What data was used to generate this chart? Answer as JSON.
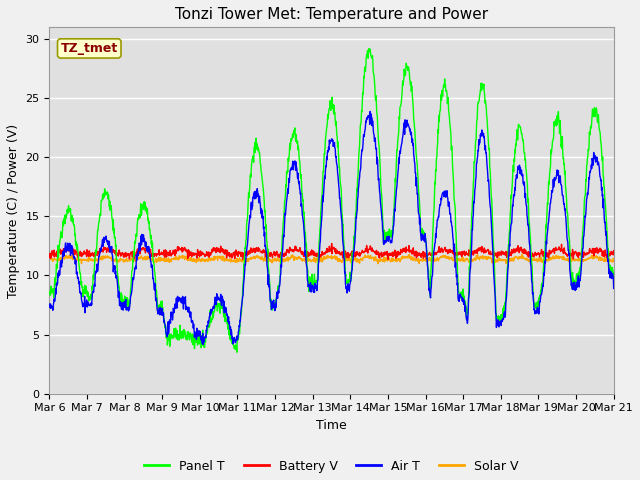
{
  "title": "Tonzi Tower Met: Temperature and Power",
  "xlabel": "Time",
  "ylabel": "Temperature (C) / Power (V)",
  "label_box": "TZ_tmet",
  "ylim": [
    0,
    31
  ],
  "yticks": [
    0,
    5,
    10,
    15,
    20,
    25,
    30
  ],
  "x_labels": [
    "Mar 6",
    "Mar 7",
    "Mar 8",
    "Mar 9",
    "Mar 10",
    "Mar 11",
    "Mar 12",
    "Mar 13",
    "Mar 14",
    "Mar 15",
    "Mar 16",
    "Mar 17",
    "Mar 18",
    "Mar 19",
    "Mar 20",
    "Mar 21"
  ],
  "colors": {
    "panel_t": "#00FF00",
    "battery_v": "#FF0000",
    "air_t": "#0000FF",
    "solar_v": "#FFA500"
  },
  "legend": [
    "Panel T",
    "Battery V",
    "Air T",
    "Solar V"
  ],
  "fig_bg": "#F0F0F0",
  "plot_bg": "#E0E0E0",
  "grid_color": "#FFFFFF",
  "title_fontsize": 11,
  "axis_fontsize": 9,
  "tick_fontsize": 8,
  "legend_fontsize": 9,
  "panel_day_peaks": [
    15.5,
    17.0,
    16.0,
    5.0,
    7.5,
    21.0,
    22.0,
    24.5,
    29.0,
    27.5,
    26.0,
    26.0,
    22.5,
    23.0,
    24.0
  ],
  "panel_night_mins": [
    8.5,
    8.0,
    7.5,
    4.5,
    4.0,
    7.5,
    9.5,
    9.5,
    13.5,
    13.5,
    8.5,
    6.5,
    7.5,
    9.5,
    10.5
  ],
  "air_day_peaks": [
    12.5,
    13.0,
    13.0,
    8.0,
    8.0,
    17.0,
    19.5,
    21.5,
    23.5,
    23.0,
    17.0,
    22.0,
    19.0,
    18.5,
    20.0
  ],
  "air_night_mins": [
    7.5,
    7.5,
    7.0,
    5.0,
    4.5,
    7.5,
    9.0,
    9.0,
    13.0,
    13.0,
    8.0,
    6.0,
    7.0,
    9.0,
    10.0
  ]
}
